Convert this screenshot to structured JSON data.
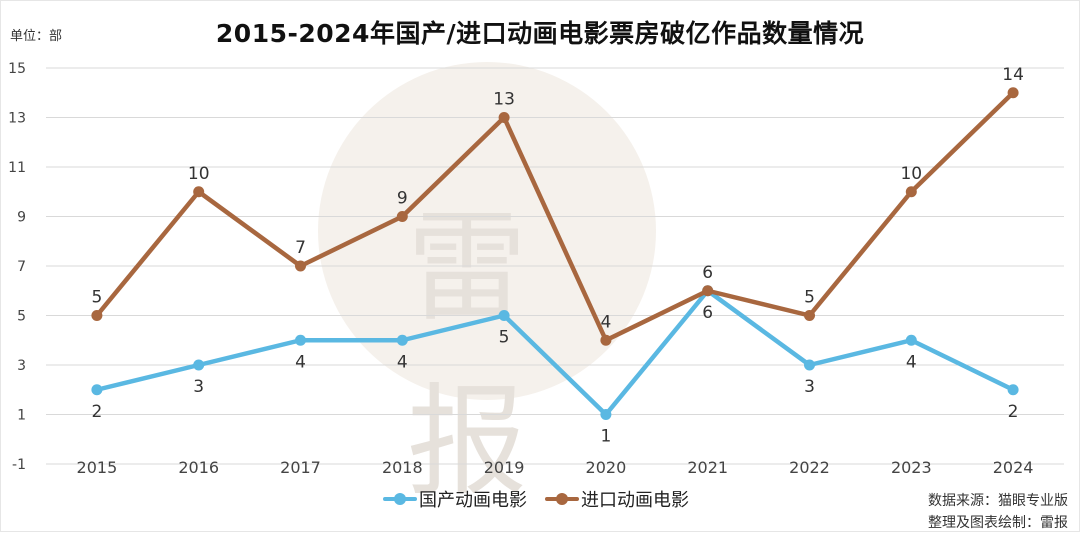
{
  "title": "2015-2024年国产/进口动画电影票房破亿作品数量情况",
  "unit_label": "单位：部",
  "watermark": "雷 报",
  "source_line1": "数据来源：猫眼专业版",
  "source_line2": "整理及图表绘制：雷报",
  "chart_data": {
    "type": "line",
    "title": "2015-2024年国产/进口动画电影票房破亿作品数量情况",
    "xlabel": "",
    "ylabel": "单位：部",
    "ylim": [
      -1,
      15
    ],
    "yticks": [
      -1,
      1,
      3,
      5,
      7,
      9,
      11,
      13,
      15
    ],
    "grid": true,
    "legend_position": "bottom-center",
    "categories": [
      "2015",
      "2016",
      "2017",
      "2018",
      "2019",
      "2020",
      "2021",
      "2022",
      "2023",
      "2024"
    ],
    "series": [
      {
        "name": "国产动画电影",
        "color": "#5ab8e2",
        "values": [
          2,
          3,
          4,
          4,
          5,
          1,
          6,
          3,
          4,
          2
        ],
        "label_side": "below"
      },
      {
        "name": "进口动画电影",
        "color": "#a8673f",
        "values": [
          5,
          10,
          7,
          9,
          13,
          4,
          6,
          5,
          10,
          14
        ],
        "label_side": "above"
      }
    ]
  }
}
